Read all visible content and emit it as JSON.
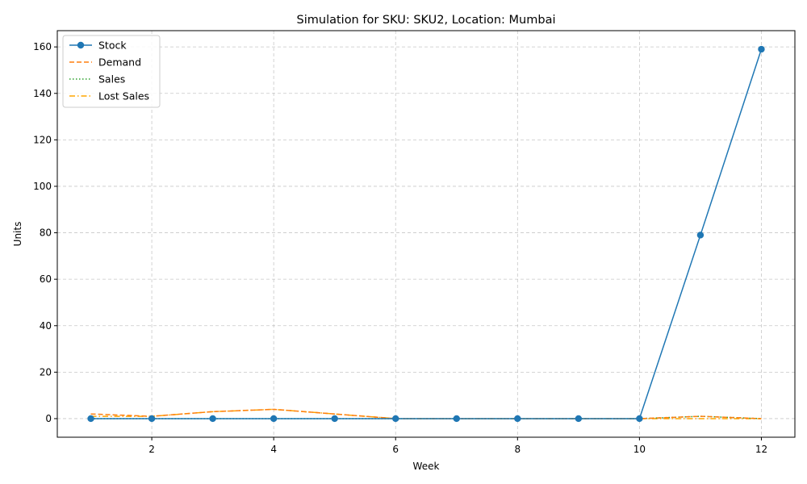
{
  "chart_data": {
    "type": "line",
    "title": "Simulation for SKU: SKU2, Location: Mumbai",
    "xlabel": "Week",
    "ylabel": "Units",
    "x": [
      1,
      2,
      3,
      4,
      5,
      6,
      7,
      8,
      9,
      10,
      11,
      12
    ],
    "xlim": [
      0.45,
      12.55
    ],
    "ylim": [
      -8,
      167
    ],
    "xticks": [
      2,
      4,
      6,
      8,
      10,
      12
    ],
    "yticks": [
      0,
      20,
      40,
      60,
      80,
      100,
      120,
      140,
      160
    ],
    "grid": true,
    "legend_position": "top-left",
    "series": [
      {
        "name": "Stock",
        "values": [
          0,
          0,
          0,
          0,
          0,
          0,
          0,
          0,
          0,
          0,
          79,
          159
        ],
        "color": "#1f77b4",
        "style": "solid",
        "marker": "circle"
      },
      {
        "name": "Demand",
        "values": [
          2,
          1,
          3,
          4,
          2,
          0,
          0,
          0,
          0,
          0,
          1,
          0
        ],
        "color": "#ff7f0e",
        "style": "dashed",
        "marker": "none"
      },
      {
        "name": "Sales",
        "values": [
          0,
          0,
          0,
          0,
          0,
          0,
          0,
          0,
          0,
          0,
          1,
          0
        ],
        "color": "#2ca02c",
        "style": "dotted",
        "marker": "none"
      },
      {
        "name": "Lost Sales",
        "values": [
          1,
          1,
          3,
          4,
          2,
          0,
          0,
          0,
          0,
          0,
          0,
          0
        ],
        "color": "#ffa500",
        "style": "dashdot",
        "marker": "none"
      }
    ]
  }
}
